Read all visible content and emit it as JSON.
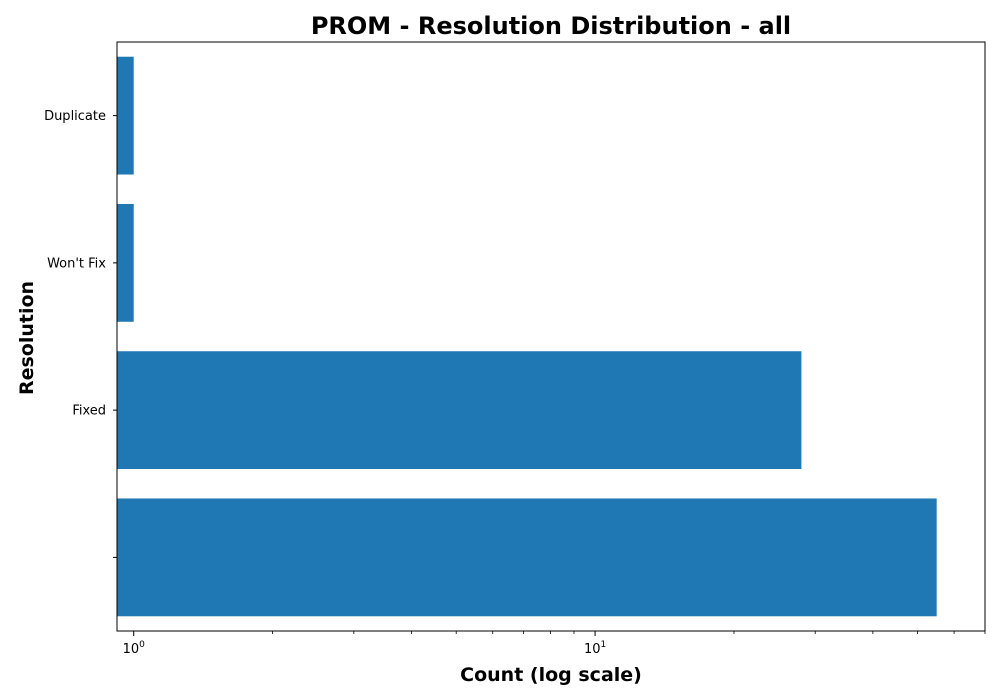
{
  "chart_data": {
    "type": "bar",
    "orientation": "horizontal",
    "title": "PROM - Resolution Distribution - all",
    "xlabel": "Count (log scale)",
    "ylabel": "Resolution",
    "x_scale": "log",
    "xlim": [
      0.92,
      70
    ],
    "categories": [
      "",
      "Fixed",
      "Won't Fix",
      "Duplicate"
    ],
    "values": [
      55,
      28,
      1,
      1
    ],
    "x_ticks": [
      {
        "value": 1,
        "base": "10",
        "exponent": "0"
      },
      {
        "value": 10,
        "base": "10",
        "exponent": "1"
      }
    ],
    "bar_color": "#1f77b4",
    "grid": false,
    "legend": "none"
  }
}
